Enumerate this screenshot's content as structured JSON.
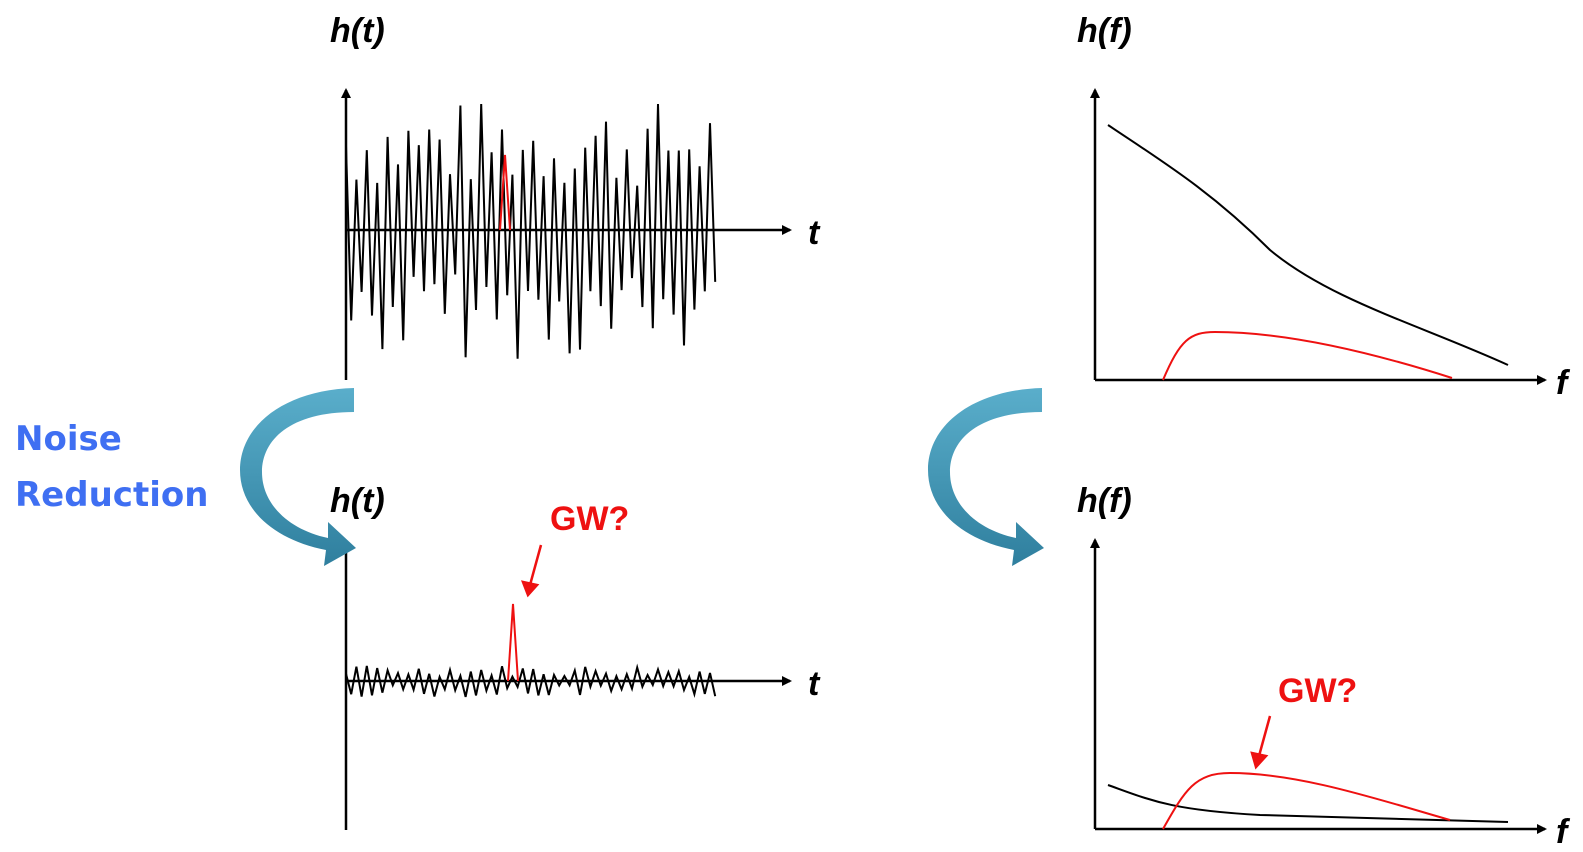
{
  "panels": [
    {
      "y_label": "h(t)",
      "x_label": "t"
    },
    {
      "y_label": "h(f)",
      "x_label": "f"
    },
    {
      "y_label": "h(t)",
      "x_label": "t",
      "annotation": "GW?"
    },
    {
      "y_label": "h(f)",
      "x_label": "f",
      "annotation": "GW?"
    }
  ],
  "step_label": [
    "Noise",
    "Reduction"
  ]
}
